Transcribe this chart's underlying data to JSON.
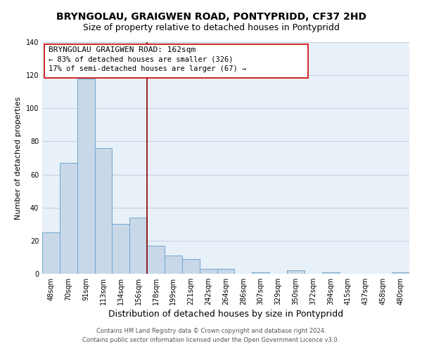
{
  "title": "BRYNGOLAU, GRAIGWEN ROAD, PONTYPRIDD, CF37 2HD",
  "subtitle": "Size of property relative to detached houses in Pontypridd",
  "xlabel": "Distribution of detached houses by size in Pontypridd",
  "ylabel": "Number of detached properties",
  "footer_line1": "Contains HM Land Registry data © Crown copyright and database right 2024.",
  "footer_line2": "Contains public sector information licensed under the Open Government Licence v3.0.",
  "bar_labels": [
    "48sqm",
    "70sqm",
    "91sqm",
    "113sqm",
    "134sqm",
    "156sqm",
    "178sqm",
    "199sqm",
    "221sqm",
    "242sqm",
    "264sqm",
    "286sqm",
    "307sqm",
    "329sqm",
    "350sqm",
    "372sqm",
    "394sqm",
    "415sqm",
    "437sqm",
    "458sqm",
    "480sqm"
  ],
  "bar_values": [
    25,
    67,
    118,
    76,
    30,
    34,
    17,
    11,
    9,
    3,
    3,
    0,
    1,
    0,
    2,
    0,
    1,
    0,
    0,
    0,
    1
  ],
  "bar_color": "#c8d8e8",
  "bar_edge_color": "#6fa8d0",
  "vline_x": 5.5,
  "vline_color": "#8b0000",
  "annotation_title": "BRYNGOLAU GRAIGWEN ROAD: 162sqm",
  "annotation_line1": "← 83% of detached houses are smaller (326)",
  "annotation_line2": "17% of semi-detached houses are larger (67) →",
  "annotation_box_color": "#ffffff",
  "annotation_box_edge": "#cc0000",
  "ylim": [
    0,
    140
  ],
  "yticks": [
    0,
    20,
    40,
    60,
    80,
    100,
    120,
    140
  ],
  "title_fontsize": 10,
  "subtitle_fontsize": 9,
  "xlabel_fontsize": 9,
  "ylabel_fontsize": 8,
  "tick_fontsize": 7,
  "annotation_title_fontsize": 8,
  "annotation_text_fontsize": 7.5,
  "footer_fontsize": 6,
  "bg_color": "#e8f0f8"
}
